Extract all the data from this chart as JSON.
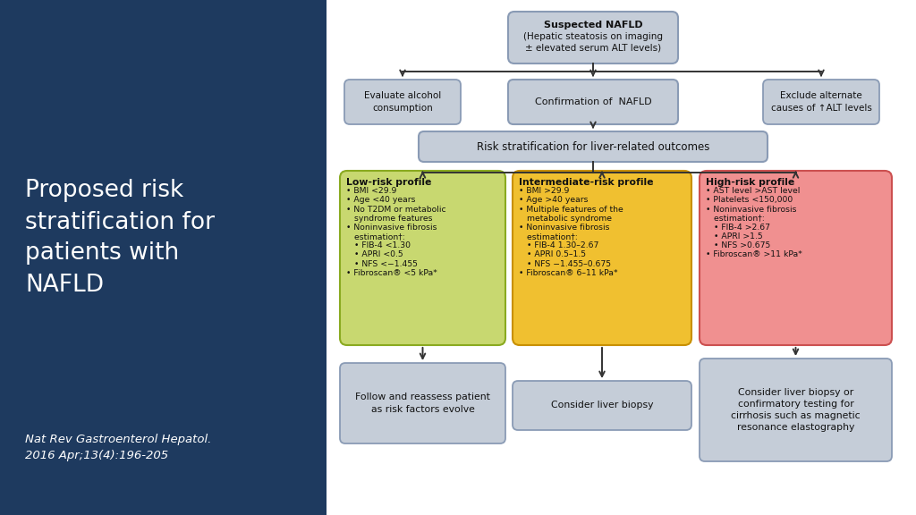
{
  "bg_left_color": "#1e3a5f",
  "bg_right_color": "#ffffff",
  "title_text": "Proposed risk\nstratification for\npatients with\nNAFLD",
  "citation_text": "Nat Rev Gastroenterol Hepatol.\n2016 Apr;13(4):196-205",
  "title_color": "#ffffff",
  "citation_color": "#ffffff",
  "box_border_color": "#8a9bb5",
  "box_fill_gray": "#c5cdd8",
  "low_risk_fill": "#c8d870",
  "low_risk_border": "#8aaa20",
  "mid_risk_fill": "#f0c030",
  "mid_risk_border": "#c89000",
  "high_risk_fill": "#f09090",
  "high_risk_border": "#cc5050",
  "arrow_color": "#333333",
  "text_color": "#111111",
  "top_box_bold": "Suspected NAFLD",
  "top_box_line2": "(Hepatic steatosis on imaging",
  "top_box_line3": "± elevated serum ALT levels)",
  "left_box_text": "Evaluate alcohol\nconsumption",
  "mid_top_box_text": "Confirmation of  NAFLD",
  "right_top_box_text": "Exclude alternate\ncauses of ↑ALT levels",
  "risk_strat_text": "Risk stratification for liver-related outcomes",
  "low_risk_title": "Low-risk profile",
  "low_risk_bullets": [
    "• BMI <29.9",
    "• Age <40 years",
    "• No T2DM or metabolic",
    "   syndrome features",
    "• Noninvasive fibrosis",
    "   estimation†:",
    "   • FIB-4 <1.30",
    "   • APRI <0.5",
    "   • NFS <−1.455",
    "• Fibroscan® <5 kPa*"
  ],
  "mid_risk_title": "Intermediate-risk profile",
  "mid_risk_bullets": [
    "• BMI >29.9",
    "• Age >40 years",
    "• Multiple features of the",
    "   metabolic syndrome",
    "• Noninvasive fibrosis",
    "   estimation†:",
    "   • FIB-4 1.30–2.67",
    "   • APRI 0.5–1.5",
    "   • NFS −1.455–0.675",
    "• Fibroscan® 6–11 kPa*"
  ],
  "high_risk_title": "High-risk profile",
  "high_risk_bullets": [
    "• AST level >AST level",
    "• Platelets <150,000",
    "• Noninvasive fibrosis",
    "   estimation†:",
    "   • FIB-4 >2.67",
    "   • APRI >1.5",
    "   • NFS >0.675",
    "• Fibroscan® >11 kPa*"
  ],
  "low_outcome_text": "Follow and reassess patient\nas risk factors evolve",
  "mid_outcome_text": "Consider liver biopsy",
  "high_outcome_text": "Consider liver biopsy or\nconfirmatory testing for\ncirrhosis such as magnetic\nresonance elastography"
}
